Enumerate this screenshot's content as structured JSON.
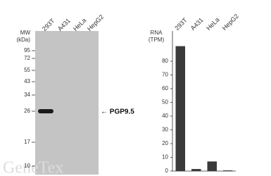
{
  "blot": {
    "mw_label": "MW",
    "mw_unit": "(kDa)",
    "lanes": [
      "293T",
      "A431",
      "HeLa",
      "HepG2"
    ],
    "markers": [
      95,
      72,
      55,
      43,
      34,
      26,
      17,
      10
    ],
    "band_label": "← PGP9.5",
    "watermark": "GeneTex"
  },
  "chart_data": {
    "type": "bar",
    "y_label_line1": "RNA",
    "y_label_line2": "(TPM)",
    "categories": [
      "293T",
      "A431",
      "HeLa",
      "HepG2"
    ],
    "values": [
      91,
      1.5,
      7,
      0.5
    ],
    "color": "#3a3a3a",
    "ylim": [
      0,
      100
    ],
    "yticks": [
      0,
      10,
      20,
      30,
      40,
      50,
      60,
      70,
      80
    ]
  }
}
